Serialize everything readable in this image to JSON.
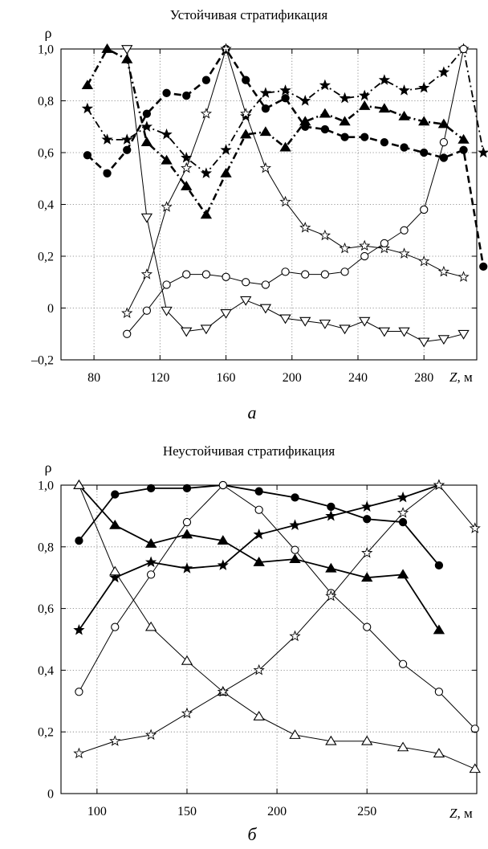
{
  "chart_data": [
    {
      "type": "line",
      "title": "Устойчивая стратификация",
      "ylabel": "ρ",
      "xlabel": "Z, м",
      "panel_label": "а",
      "xlim": [
        60,
        312
      ],
      "ylim": [
        -0.2,
        1.0
      ],
      "grid": true,
      "x_ticks": [
        80,
        120,
        160,
        200,
        240,
        280
      ],
      "y_ticks": [
        -0.2,
        0,
        0.2,
        0.4,
        0.6,
        0.8,
        1.0
      ],
      "x_tick_labels": [
        "80",
        "120",
        "160",
        "200",
        "240",
        "280"
      ],
      "y_tick_labels": [
        "–0,2",
        "0",
        "0,2",
        "0,4",
        "0,6",
        "0,8",
        "1,0"
      ],
      "series": [
        {
          "marker": "triangle-filled",
          "line": "dash-dot",
          "linewidth": 2.6,
          "x": [
            76,
            88,
            100,
            112,
            124,
            136,
            148,
            160,
            172,
            184,
            196,
            208,
            220,
            232,
            244,
            256,
            268,
            280,
            292,
            304
          ],
          "y": [
            0.86,
            1.0,
            0.96,
            0.64,
            0.57,
            0.47,
            0.36,
            0.52,
            0.67,
            0.68,
            0.62,
            0.72,
            0.75,
            0.72,
            0.78,
            0.77,
            0.74,
            0.72,
            0.71,
            0.65
          ]
        },
        {
          "marker": "circle-filled",
          "line": "dashed",
          "linewidth": 2.6,
          "x": [
            76,
            88,
            100,
            112,
            124,
            136,
            148,
            160,
            172,
            184,
            196,
            208,
            220,
            232,
            244,
            256,
            268,
            280,
            292,
            304,
            316
          ],
          "y": [
            0.59,
            0.52,
            0.61,
            0.75,
            0.83,
            0.82,
            0.88,
            1.0,
            0.88,
            0.77,
            0.81,
            0.7,
            0.69,
            0.66,
            0.66,
            0.64,
            0.62,
            0.6,
            0.58,
            0.61,
            0.16
          ]
        },
        {
          "marker": "star-filled",
          "line": "dash-dot",
          "linewidth": 1.8,
          "x": [
            76,
            88,
            100,
            112,
            124,
            136,
            148,
            160,
            172,
            184,
            196,
            208,
            220,
            232,
            244,
            256,
            268,
            280,
            292,
            304,
            316
          ],
          "y": [
            0.77,
            0.65,
            0.65,
            0.7,
            0.67,
            0.58,
            0.52,
            0.61,
            0.74,
            0.83,
            0.84,
            0.8,
            0.86,
            0.81,
            0.82,
            0.88,
            0.84,
            0.85,
            0.91,
            1.0,
            0.6
          ]
        },
        {
          "marker": "star-open",
          "line": "solid",
          "linewidth": 1,
          "x": [
            100,
            112,
            124,
            136,
            148,
            160,
            172,
            184,
            196,
            208,
            220,
            232,
            244,
            256,
            268,
            280,
            292,
            304
          ],
          "y": [
            -0.02,
            0.13,
            0.39,
            0.54,
            0.75,
            1.0,
            0.75,
            0.54,
            0.41,
            0.31,
            0.28,
            0.23,
            0.24,
            0.23,
            0.21,
            0.18,
            0.14,
            0.12
          ]
        },
        {
          "marker": "circle-open",
          "line": "solid",
          "linewidth": 1,
          "x": [
            100,
            112,
            124,
            136,
            148,
            160,
            172,
            184,
            196,
            208,
            220,
            232,
            244,
            256,
            268,
            280,
            292,
            304
          ],
          "y": [
            -0.1,
            -0.01,
            0.09,
            0.13,
            0.13,
            0.12,
            0.1,
            0.09,
            0.14,
            0.13,
            0.13,
            0.14,
            0.2,
            0.25,
            0.3,
            0.38,
            0.64,
            1.0
          ]
        },
        {
          "marker": "triangle-down-open",
          "line": "solid",
          "linewidth": 1,
          "x": [
            100,
            112,
            124,
            136,
            148,
            160,
            172,
            184,
            196,
            208,
            220,
            232,
            244,
            256,
            268,
            280,
            292,
            304
          ],
          "y": [
            1.0,
            0.35,
            -0.01,
            -0.09,
            -0.08,
            -0.02,
            0.03,
            0.0,
            -0.04,
            -0.05,
            -0.06,
            -0.08,
            -0.05,
            -0.09,
            -0.09,
            -0.13,
            -0.12,
            -0.1
          ]
        }
      ]
    },
    {
      "type": "line",
      "title": "Неустойчивая стратификация",
      "ylabel": "ρ",
      "xlabel": "Z, м",
      "panel_label": "б",
      "xlim": [
        80,
        311
      ],
      "ylim": [
        0,
        1.0
      ],
      "grid": true,
      "x_ticks": [
        100,
        150,
        200,
        250
      ],
      "y_ticks": [
        0,
        0.2,
        0.4,
        0.6,
        0.8,
        1.0
      ],
      "x_tick_labels": [
        "100",
        "150",
        "200",
        "250"
      ],
      "y_tick_labels": [
        "0",
        "0,2",
        "0,4",
        "0,6",
        "0,8",
        "1,0"
      ],
      "series": [
        {
          "marker": "circle-filled",
          "line": "solid",
          "linewidth": 1.8,
          "x": [
            90,
            110,
            130,
            150,
            170,
            190,
            210,
            230,
            250,
            270,
            290
          ],
          "y": [
            0.82,
            0.97,
            0.99,
            0.99,
            1.0,
            0.98,
            0.96,
            0.93,
            0.89,
            0.88,
            0.74
          ]
        },
        {
          "marker": "triangle-filled",
          "line": "solid",
          "linewidth": 1.8,
          "x": [
            90,
            110,
            130,
            150,
            170,
            190,
            210,
            230,
            250,
            270,
            290
          ],
          "y": [
            1.0,
            0.87,
            0.81,
            0.84,
            0.82,
            0.75,
            0.76,
            0.73,
            0.7,
            0.71,
            0.53
          ]
        },
        {
          "marker": "star-filled",
          "line": "solid",
          "linewidth": 1.8,
          "x": [
            90,
            110,
            130,
            150,
            170,
            190,
            210,
            230,
            250,
            270,
            290
          ],
          "y": [
            0.53,
            0.7,
            0.75,
            0.73,
            0.74,
            0.84,
            0.87,
            0.9,
            0.93,
            0.96,
            1.0
          ]
        },
        {
          "marker": "circle-open",
          "line": "solid",
          "linewidth": 1,
          "x": [
            90,
            110,
            130,
            150,
            170,
            190,
            210,
            230,
            250,
            270,
            290,
            310
          ],
          "y": [
            0.33,
            0.54,
            0.71,
            0.88,
            1.0,
            0.92,
            0.79,
            0.65,
            0.54,
            0.42,
            0.33,
            0.21
          ]
        },
        {
          "marker": "triangle-open",
          "line": "solid",
          "linewidth": 1,
          "x": [
            90,
            110,
            130,
            150,
            170,
            190,
            210,
            230,
            250,
            270,
            290,
            310
          ],
          "y": [
            1.0,
            0.72,
            0.54,
            0.43,
            0.33,
            0.25,
            0.19,
            0.17,
            0.17,
            0.15,
            0.13,
            0.08
          ]
        },
        {
          "marker": "star-open",
          "line": "solid",
          "linewidth": 1,
          "x": [
            90,
            110,
            130,
            150,
            170,
            190,
            210,
            230,
            250,
            270,
            290,
            310
          ],
          "y": [
            0.13,
            0.17,
            0.19,
            0.26,
            0.33,
            0.4,
            0.51,
            0.64,
            0.78,
            0.91,
            1.0,
            0.86
          ]
        }
      ]
    }
  ]
}
